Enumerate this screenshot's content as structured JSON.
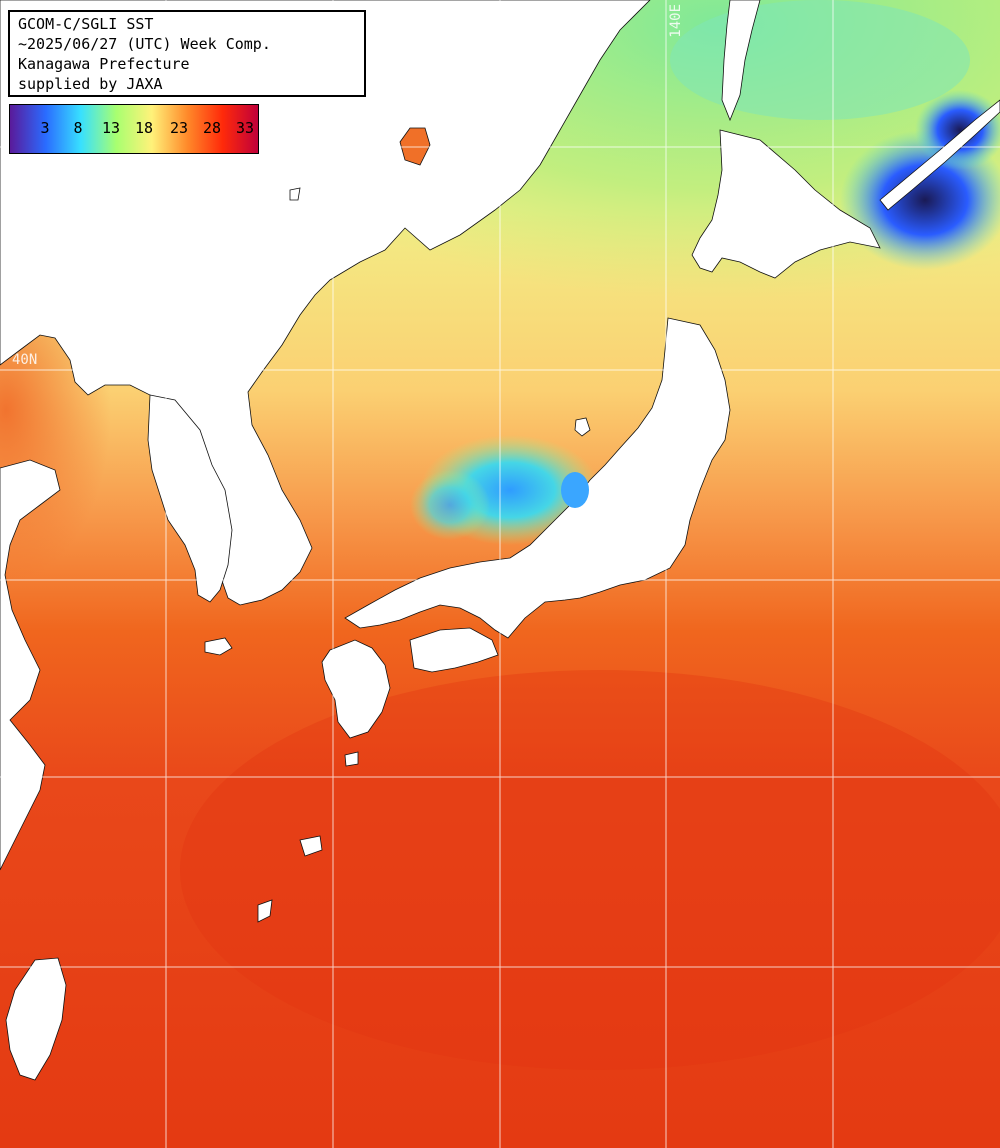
{
  "title_block": {
    "lines": [
      "GCOM-C/SGLI SST",
      "~2025/06/27 (UTC) Week Comp.",
      "Kanagawa Prefecture",
      "supplied by JAXA"
    ]
  },
  "color_scale": {
    "labels": [
      "3",
      "8",
      "13",
      "18",
      "23",
      "28",
      "33"
    ],
    "stops": [
      "#5a1a9a",
      "#2a6bff",
      "#38e0ff",
      "#a8ff70",
      "#fff27a",
      "#ff8a2a",
      "#ff2a0a",
      "#c0003a"
    ]
  },
  "grid_labels": {
    "longitude": "140E",
    "latitude": "40N"
  },
  "colors": {
    "land": "#ffffff",
    "gridline": "#ffffff",
    "sea_warm": "#e83a10",
    "sea_orange": "#f57a2c",
    "sea_yellow": "#fbe27a",
    "sea_green": "#a8ef7a",
    "sea_cyan": "#52d6e0",
    "sea_blue": "#2a5cff",
    "sea_dark": "#1c1c5a"
  }
}
